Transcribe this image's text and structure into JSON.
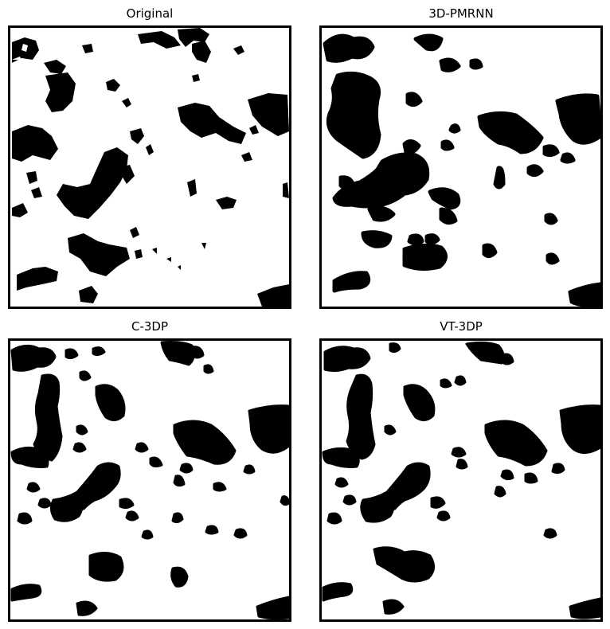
{
  "panels": [
    {
      "title": "Original"
    },
    {
      "title": "3D-PMRNN"
    },
    {
      "title": "C-3DP"
    },
    {
      "title": "VT-3DP"
    }
  ],
  "colors": {
    "phase": "#000000",
    "background": "#ffffff"
  }
}
